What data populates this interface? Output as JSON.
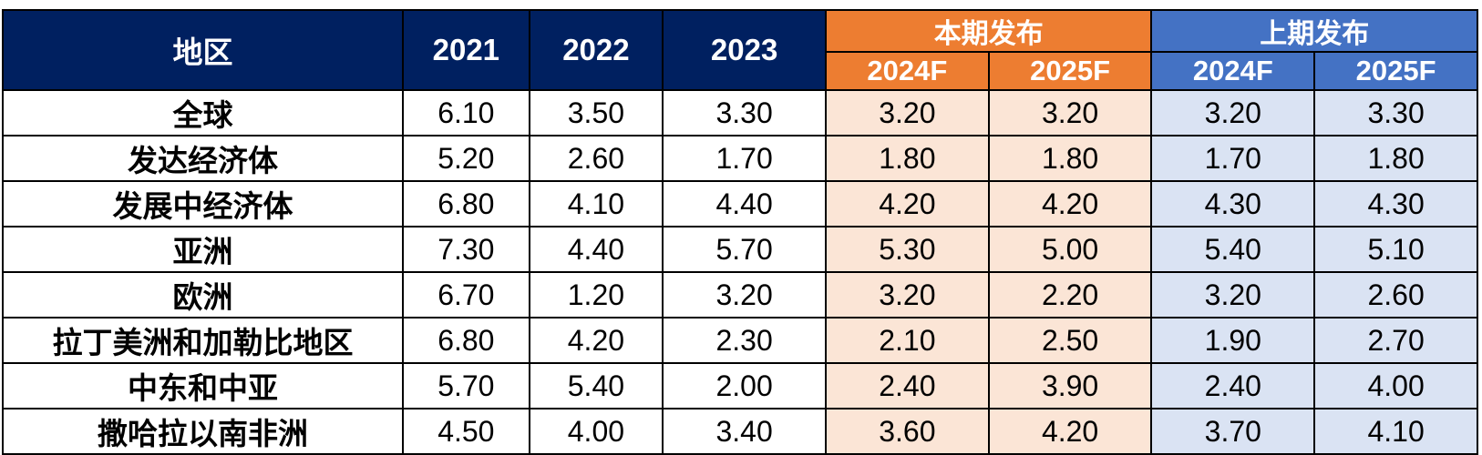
{
  "table": {
    "col_region": "地区",
    "years": [
      "2021",
      "2022",
      "2023"
    ],
    "current_group": "本期发布",
    "previous_group": "上期发布",
    "forecast_years": [
      "2024F",
      "2025F"
    ]
  },
  "chart_data": {
    "type": "table",
    "columns": [
      "地区",
      "2021",
      "2022",
      "2023",
      "本期发布 2024F",
      "本期发布 2025F",
      "上期发布 2024F",
      "上期发布 2025F"
    ],
    "rows": [
      {
        "region": "全球",
        "values": [
          "6.10",
          "3.50",
          "3.30",
          "3.20",
          "3.20",
          "3.20",
          "3.30"
        ]
      },
      {
        "region": "发达经济体",
        "values": [
          "5.20",
          "2.60",
          "1.70",
          "1.80",
          "1.80",
          "1.70",
          "1.80"
        ]
      },
      {
        "region": "发展中经济体",
        "values": [
          "6.80",
          "4.10",
          "4.40",
          "4.20",
          "4.20",
          "4.30",
          "4.30"
        ]
      },
      {
        "region": "亚洲",
        "values": [
          "7.30",
          "4.40",
          "5.70",
          "5.30",
          "5.00",
          "5.40",
          "5.10"
        ]
      },
      {
        "region": "欧洲",
        "values": [
          "6.70",
          "1.20",
          "3.20",
          "3.20",
          "2.20",
          "3.20",
          "2.60"
        ]
      },
      {
        "region": "拉丁美洲和加勒比地区",
        "values": [
          "6.80",
          "4.20",
          "2.30",
          "2.10",
          "2.50",
          "1.90",
          "2.70"
        ]
      },
      {
        "region": "中东和中亚",
        "values": [
          "5.70",
          "5.40",
          "2.00",
          "2.40",
          "3.90",
          "2.40",
          "4.00"
        ]
      },
      {
        "region": "撒哈拉以南非洲",
        "values": [
          "4.50",
          "4.00",
          "3.40",
          "3.60",
          "4.20",
          "3.70",
          "4.10"
        ]
      }
    ]
  },
  "colors": {
    "header_navy": "#002060",
    "current_header": "#ED7D31",
    "current_fill": "#FBE5D6",
    "previous_header": "#4472C4",
    "previous_fill": "#DAE3F3"
  }
}
